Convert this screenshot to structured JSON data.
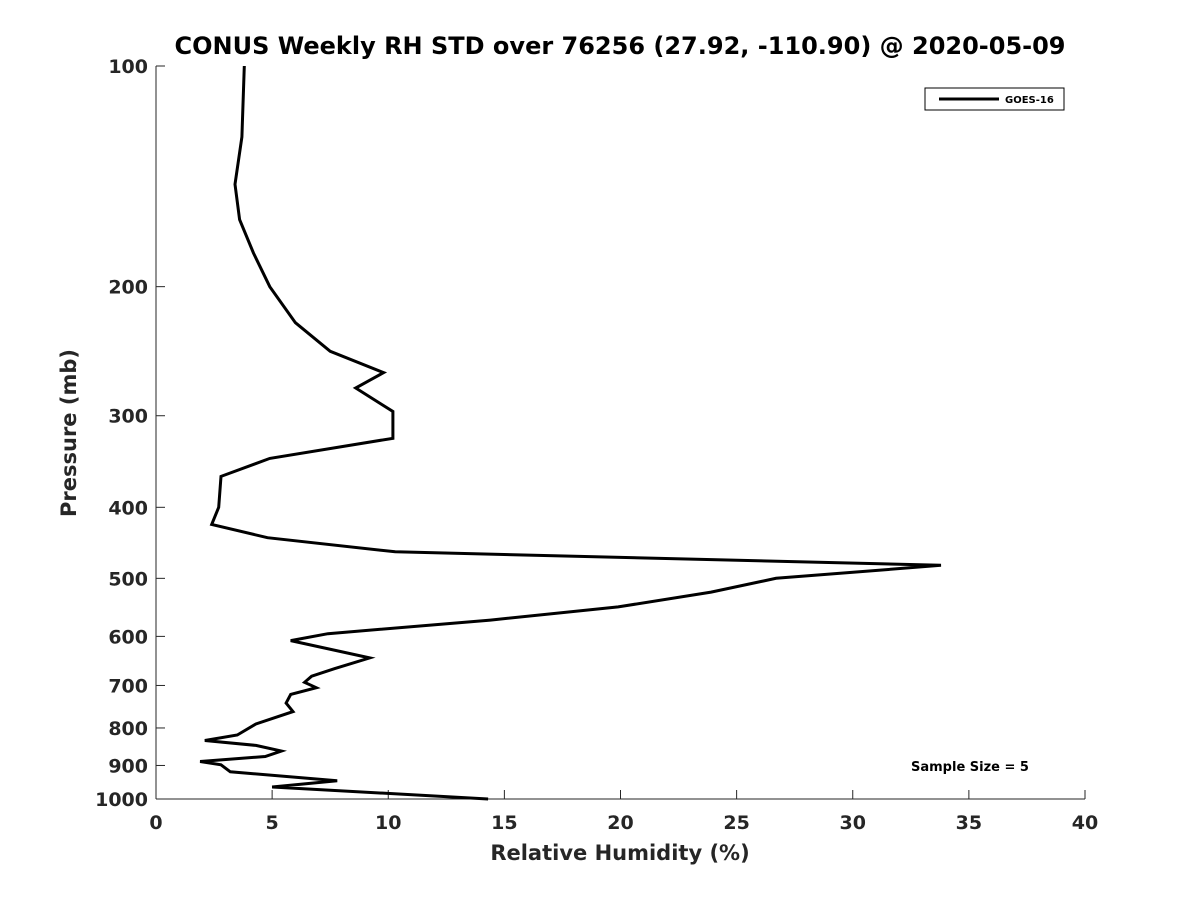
{
  "chart_data": {
    "type": "line",
    "title": "CONUS Weekly RH STD over 76256 (27.92, -110.90) @ 2020-05-09",
    "xlabel": "Relative Humidity (%)",
    "ylabel": "Pressure (mb)",
    "xlim": [
      0,
      40
    ],
    "ylim": [
      100,
      1000
    ],
    "yscale": "log",
    "y_reversed": true,
    "grid": false,
    "legend_placement": "top-right",
    "x_ticks": [
      0,
      5,
      10,
      15,
      20,
      25,
      30,
      35,
      40
    ],
    "x_tick_labels": [
      "0",
      "5",
      "10",
      "15",
      "20",
      "25",
      "30",
      "35",
      "40"
    ],
    "y_ticks": [
      100,
      200,
      300,
      400,
      500,
      600,
      700,
      800,
      900,
      1000
    ],
    "y_tick_labels": [
      "100",
      "200",
      "300",
      "400",
      "500",
      "600",
      "700",
      "800",
      "900",
      "1000"
    ],
    "series": [
      {
        "name": "GOES-16",
        "color": "#000000",
        "x": [
          3.8,
          3.7,
          3.4,
          3.6,
          4.2,
          4.9,
          6.0,
          7.5,
          9.8,
          8.6,
          10.2,
          10.2,
          4.9,
          2.8,
          2.7,
          2.4,
          4.8,
          10.3,
          33.8,
          26.7,
          23.9,
          19.9,
          14.4,
          7.4,
          5.8,
          9.2,
          7.7,
          6.7,
          6.4,
          6.9,
          5.8,
          5.6,
          5.9,
          4.3,
          3.5,
          2.1,
          4.3,
          5.4,
          4.7,
          1.9,
          2.8,
          3.2,
          7.8,
          5.0,
          14.3
        ],
        "y": [
          100,
          125,
          145,
          162,
          180,
          200,
          224,
          245,
          262,
          275,
          296,
          322,
          343,
          363,
          400,
          422,
          440,
          460,
          480,
          500,
          522,
          547,
          570,
          595,
          608,
          642,
          664,
          680,
          693,
          705,
          720,
          740,
          760,
          790,
          818,
          832,
          845,
          860,
          875,
          889,
          898,
          918,
          944,
          963,
          1000
        ]
      }
    ],
    "annotations": [
      {
        "text": "Sample Size = 5"
      }
    ]
  }
}
